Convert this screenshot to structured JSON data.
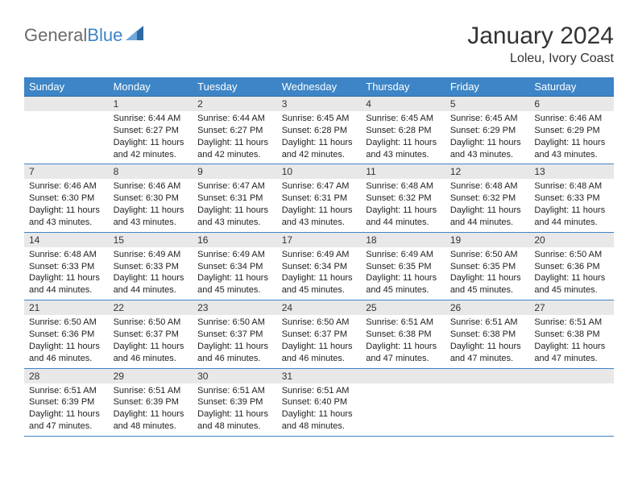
{
  "logo": {
    "text_general": "General",
    "text_blue": "Blue",
    "icon_color": "#2d6aa3"
  },
  "header": {
    "month_title": "January 2024",
    "location": "Loleu, Ivory Coast"
  },
  "colors": {
    "header_bg": "#3d85c6",
    "header_text": "#ffffff",
    "daynum_bg": "#e8e8e8",
    "border": "#3d85c6",
    "body_text": "#222222",
    "page_bg": "#ffffff"
  },
  "weekdays": [
    "Sunday",
    "Monday",
    "Tuesday",
    "Wednesday",
    "Thursday",
    "Friday",
    "Saturday"
  ],
  "weeks": [
    [
      {
        "day": "",
        "sunrise": "",
        "sunset": "",
        "daylight": ""
      },
      {
        "day": "1",
        "sunrise": "Sunrise: 6:44 AM",
        "sunset": "Sunset: 6:27 PM",
        "daylight": "Daylight: 11 hours and 42 minutes."
      },
      {
        "day": "2",
        "sunrise": "Sunrise: 6:44 AM",
        "sunset": "Sunset: 6:27 PM",
        "daylight": "Daylight: 11 hours and 42 minutes."
      },
      {
        "day": "3",
        "sunrise": "Sunrise: 6:45 AM",
        "sunset": "Sunset: 6:28 PM",
        "daylight": "Daylight: 11 hours and 42 minutes."
      },
      {
        "day": "4",
        "sunrise": "Sunrise: 6:45 AM",
        "sunset": "Sunset: 6:28 PM",
        "daylight": "Daylight: 11 hours and 43 minutes."
      },
      {
        "day": "5",
        "sunrise": "Sunrise: 6:45 AM",
        "sunset": "Sunset: 6:29 PM",
        "daylight": "Daylight: 11 hours and 43 minutes."
      },
      {
        "day": "6",
        "sunrise": "Sunrise: 6:46 AM",
        "sunset": "Sunset: 6:29 PM",
        "daylight": "Daylight: 11 hours and 43 minutes."
      }
    ],
    [
      {
        "day": "7",
        "sunrise": "Sunrise: 6:46 AM",
        "sunset": "Sunset: 6:30 PM",
        "daylight": "Daylight: 11 hours and 43 minutes."
      },
      {
        "day": "8",
        "sunrise": "Sunrise: 6:46 AM",
        "sunset": "Sunset: 6:30 PM",
        "daylight": "Daylight: 11 hours and 43 minutes."
      },
      {
        "day": "9",
        "sunrise": "Sunrise: 6:47 AM",
        "sunset": "Sunset: 6:31 PM",
        "daylight": "Daylight: 11 hours and 43 minutes."
      },
      {
        "day": "10",
        "sunrise": "Sunrise: 6:47 AM",
        "sunset": "Sunset: 6:31 PM",
        "daylight": "Daylight: 11 hours and 43 minutes."
      },
      {
        "day": "11",
        "sunrise": "Sunrise: 6:48 AM",
        "sunset": "Sunset: 6:32 PM",
        "daylight": "Daylight: 11 hours and 44 minutes."
      },
      {
        "day": "12",
        "sunrise": "Sunrise: 6:48 AM",
        "sunset": "Sunset: 6:32 PM",
        "daylight": "Daylight: 11 hours and 44 minutes."
      },
      {
        "day": "13",
        "sunrise": "Sunrise: 6:48 AM",
        "sunset": "Sunset: 6:33 PM",
        "daylight": "Daylight: 11 hours and 44 minutes."
      }
    ],
    [
      {
        "day": "14",
        "sunrise": "Sunrise: 6:48 AM",
        "sunset": "Sunset: 6:33 PM",
        "daylight": "Daylight: 11 hours and 44 minutes."
      },
      {
        "day": "15",
        "sunrise": "Sunrise: 6:49 AM",
        "sunset": "Sunset: 6:33 PM",
        "daylight": "Daylight: 11 hours and 44 minutes."
      },
      {
        "day": "16",
        "sunrise": "Sunrise: 6:49 AM",
        "sunset": "Sunset: 6:34 PM",
        "daylight": "Daylight: 11 hours and 45 minutes."
      },
      {
        "day": "17",
        "sunrise": "Sunrise: 6:49 AM",
        "sunset": "Sunset: 6:34 PM",
        "daylight": "Daylight: 11 hours and 45 minutes."
      },
      {
        "day": "18",
        "sunrise": "Sunrise: 6:49 AM",
        "sunset": "Sunset: 6:35 PM",
        "daylight": "Daylight: 11 hours and 45 minutes."
      },
      {
        "day": "19",
        "sunrise": "Sunrise: 6:50 AM",
        "sunset": "Sunset: 6:35 PM",
        "daylight": "Daylight: 11 hours and 45 minutes."
      },
      {
        "day": "20",
        "sunrise": "Sunrise: 6:50 AM",
        "sunset": "Sunset: 6:36 PM",
        "daylight": "Daylight: 11 hours and 45 minutes."
      }
    ],
    [
      {
        "day": "21",
        "sunrise": "Sunrise: 6:50 AM",
        "sunset": "Sunset: 6:36 PM",
        "daylight": "Daylight: 11 hours and 46 minutes."
      },
      {
        "day": "22",
        "sunrise": "Sunrise: 6:50 AM",
        "sunset": "Sunset: 6:37 PM",
        "daylight": "Daylight: 11 hours and 46 minutes."
      },
      {
        "day": "23",
        "sunrise": "Sunrise: 6:50 AM",
        "sunset": "Sunset: 6:37 PM",
        "daylight": "Daylight: 11 hours and 46 minutes."
      },
      {
        "day": "24",
        "sunrise": "Sunrise: 6:50 AM",
        "sunset": "Sunset: 6:37 PM",
        "daylight": "Daylight: 11 hours and 46 minutes."
      },
      {
        "day": "25",
        "sunrise": "Sunrise: 6:51 AM",
        "sunset": "Sunset: 6:38 PM",
        "daylight": "Daylight: 11 hours and 47 minutes."
      },
      {
        "day": "26",
        "sunrise": "Sunrise: 6:51 AM",
        "sunset": "Sunset: 6:38 PM",
        "daylight": "Daylight: 11 hours and 47 minutes."
      },
      {
        "day": "27",
        "sunrise": "Sunrise: 6:51 AM",
        "sunset": "Sunset: 6:38 PM",
        "daylight": "Daylight: 11 hours and 47 minutes."
      }
    ],
    [
      {
        "day": "28",
        "sunrise": "Sunrise: 6:51 AM",
        "sunset": "Sunset: 6:39 PM",
        "daylight": "Daylight: 11 hours and 47 minutes."
      },
      {
        "day": "29",
        "sunrise": "Sunrise: 6:51 AM",
        "sunset": "Sunset: 6:39 PM",
        "daylight": "Daylight: 11 hours and 48 minutes."
      },
      {
        "day": "30",
        "sunrise": "Sunrise: 6:51 AM",
        "sunset": "Sunset: 6:39 PM",
        "daylight": "Daylight: 11 hours and 48 minutes."
      },
      {
        "day": "31",
        "sunrise": "Sunrise: 6:51 AM",
        "sunset": "Sunset: 6:40 PM",
        "daylight": "Daylight: 11 hours and 48 minutes."
      },
      {
        "day": "",
        "sunrise": "",
        "sunset": "",
        "daylight": ""
      },
      {
        "day": "",
        "sunrise": "",
        "sunset": "",
        "daylight": ""
      },
      {
        "day": "",
        "sunrise": "",
        "sunset": "",
        "daylight": ""
      }
    ]
  ]
}
